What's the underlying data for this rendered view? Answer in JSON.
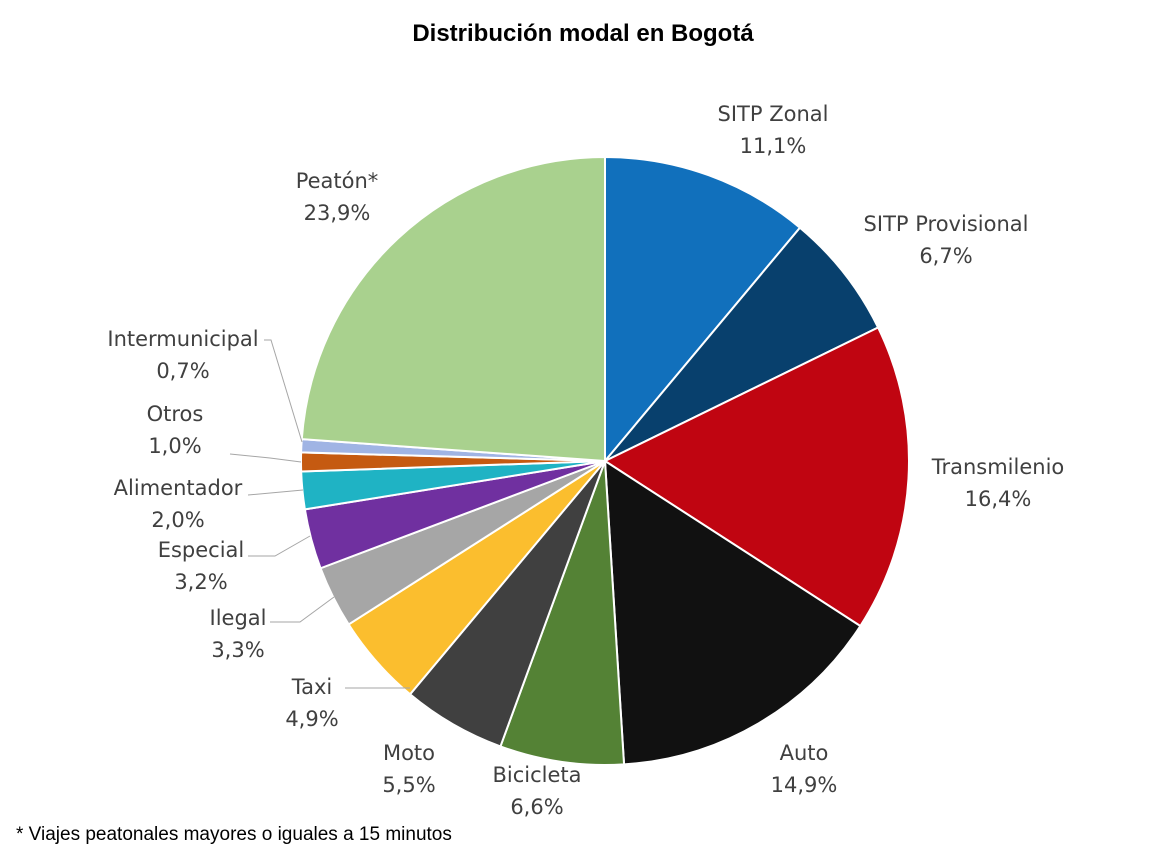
{
  "chart_data": {
    "type": "pie",
    "title": "Distribución modal en Bogotá",
    "footnote": "* Viajes peatonales mayores o iguales a 15 minutos",
    "slices": [
      {
        "label": "SITP Zonal",
        "value": 11.1,
        "value_label": "11,1%",
        "color": "#1170BC"
      },
      {
        "label": "SITP Provisional",
        "value": 6.7,
        "value_label": "6,7%",
        "color": "#08406D"
      },
      {
        "label": "Transmilenio",
        "value": 16.4,
        "value_label": "16,4%",
        "color": "#C00511"
      },
      {
        "label": "Auto",
        "value": 14.9,
        "value_label": "14,9%",
        "color": "#111111"
      },
      {
        "label": "Bicicleta",
        "value": 6.6,
        "value_label": "6,6%",
        "color": "#548235"
      },
      {
        "label": "Moto",
        "value": 5.5,
        "value_label": "5,5%",
        "color": "#404040"
      },
      {
        "label": "Taxi",
        "value": 4.9,
        "value_label": "4,9%",
        "color": "#FBBE2E"
      },
      {
        "label": "Ilegal",
        "value": 3.3,
        "value_label": "3,3%",
        "color": "#A6A6A6"
      },
      {
        "label": "Especial",
        "value": 3.2,
        "value_label": "3,2%",
        "color": "#7030A0"
      },
      {
        "label": "Alimentador",
        "value": 2.0,
        "value_label": "2,0%",
        "color": "#1FB3C4"
      },
      {
        "label": "Otros",
        "value": 1.0,
        "value_label": "1,0%",
        "color": "#C55A11"
      },
      {
        "label": "Intermunicipal",
        "value": 0.7,
        "value_label": "0,7%",
        "color": "#A0B4E4"
      },
      {
        "label": "Peatón*",
        "value": 23.9,
        "value_label": "23,9%",
        "color": "#A9D18E"
      }
    ]
  }
}
